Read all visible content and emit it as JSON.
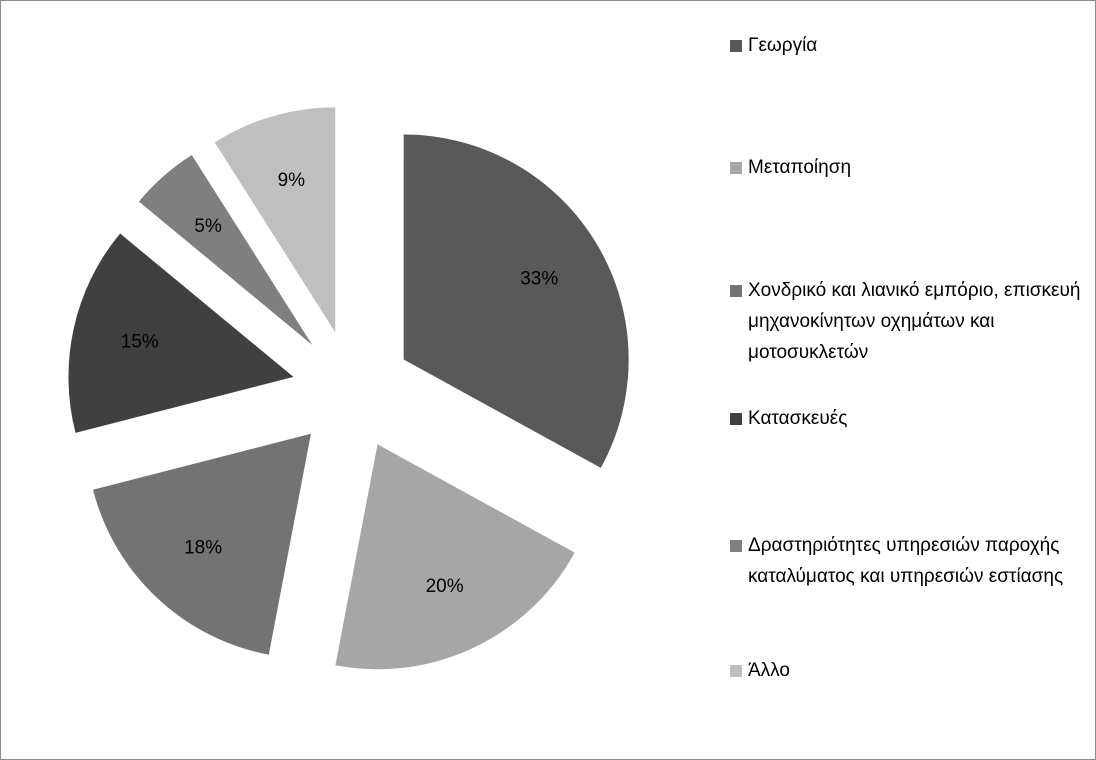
{
  "chart_data": {
    "type": "pie",
    "categories": [
      "Γεωργία",
      "Μεταποίηση",
      "Χονδρικό και λιανικό εμπόριο, επισκευή μηχανοκίνητων οχημάτων και μοτοσυκλετών",
      "Κατασκευές",
      "Δραστηριότητες υπηρεσιών παροχής καταλύματος και υπηρεσιών εστίασης",
      "Άλλο"
    ],
    "values": [
      33,
      20,
      18,
      15,
      5,
      9
    ],
    "value_labels": [
      "33%",
      "20%",
      "18%",
      "15%",
      "5%",
      "9%"
    ],
    "colors": [
      "#595959",
      "#a6a6a6",
      "#737373",
      "#404040",
      "#7f7f7f",
      "#bfbfbf"
    ],
    "exploded": true,
    "legend": "right"
  }
}
